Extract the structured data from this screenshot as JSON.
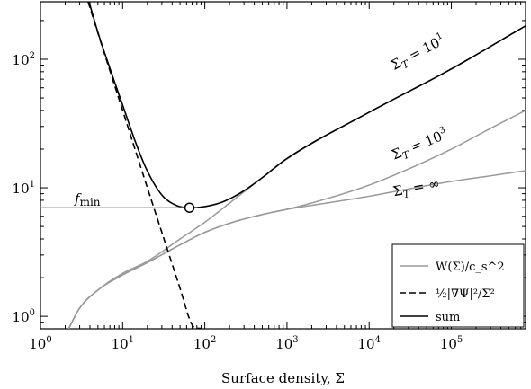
{
  "chart_data": {
    "type": "line",
    "xlabel": "Surface density, Σ",
    "ylabel": "",
    "xscale": "log",
    "yscale": "log",
    "xlim": [
      1,
      800000
    ],
    "ylim": [
      0.8,
      280
    ],
    "x_ticks": [
      {
        "value": 1,
        "base": "10",
        "exp": "0"
      },
      {
        "value": 10,
        "base": "10",
        "exp": "1"
      },
      {
        "value": 100,
        "base": "10",
        "exp": "2"
      },
      {
        "value": 1000,
        "base": "10",
        "exp": "3"
      },
      {
        "value": 10000,
        "base": "10",
        "exp": "4"
      },
      {
        "value": 100000,
        "base": "10",
        "exp": "5"
      }
    ],
    "y_ticks": [
      {
        "value": 1,
        "base": "10",
        "exp": "0"
      },
      {
        "value": 10,
        "base": "10",
        "exp": "1"
      },
      {
        "value": 100,
        "base": "10",
        "exp": "2"
      }
    ],
    "grid": false,
    "legend_position": "bottom-right",
    "legend": [
      {
        "label": "W(Σ)/c_s^2",
        "style": "solid",
        "color": "#999999"
      },
      {
        "label": "½|∇Ψ|²/Σ²",
        "style": "dashed",
        "color": "#000000"
      },
      {
        "label": "sum",
        "style": "solid",
        "color": "#000000"
      }
    ],
    "series": [
      {
        "name": "W(Σ)/c_s^2, Σ_T = 10^1",
        "style": "solid",
        "color": "#999999",
        "x": [
          2.2,
          3,
          5,
          10,
          20,
          50,
          100,
          200,
          500,
          1000,
          10000,
          100000,
          800000
        ],
        "y": [
          0.8,
          1.16,
          1.6,
          2.16,
          2.68,
          4.0,
          5.4,
          7.6,
          12.0,
          16.8,
          38.6,
          84.0,
          182.0
        ]
      },
      {
        "name": "W(Σ)/c_s^2, Σ_T = 10^3",
        "style": "solid",
        "color": "#999999",
        "x": [
          2.2,
          3,
          5,
          10,
          20,
          50,
          100,
          200,
          500,
          1000,
          3000,
          10000,
          30000,
          100000,
          300000,
          800000
        ],
        "y": [
          0.8,
          1.16,
          1.6,
          2.1,
          2.62,
          3.6,
          4.5,
          5.3,
          6.2,
          6.8,
          8.2,
          10.5,
          14.0,
          20.0,
          29.0,
          40.0
        ]
      },
      {
        "name": "W(Σ)/c_s^2, Σ_T = ∞",
        "style": "solid",
        "color": "#999999",
        "x": [
          2.2,
          3,
          5,
          10,
          20,
          50,
          100,
          200,
          500,
          1000,
          3000,
          10000,
          30000,
          100000,
          300000,
          800000
        ],
        "y": [
          0.8,
          1.16,
          1.6,
          2.1,
          2.62,
          3.6,
          4.5,
          5.3,
          6.2,
          6.8,
          7.6,
          8.6,
          9.8,
          11.2,
          12.4,
          13.6
        ]
      },
      {
        "name": "½|∇Ψ|²/Σ²",
        "style": "dashed",
        "color": "#000000",
        "x": [
          3.8,
          5,
          10,
          20,
          30,
          50,
          70,
          90
        ],
        "y": [
          280,
          160,
          40,
          10,
          4.5,
          1.65,
          0.86,
          0.8
        ]
      },
      {
        "name": "sum",
        "style": "solid",
        "color": "#000000",
        "x": [
          3.9,
          5,
          7,
          10,
          15,
          20,
          30,
          45,
          65,
          100,
          150,
          200,
          300,
          500,
          1000,
          10000,
          100000,
          800000
        ],
        "y": [
          280,
          162,
          85,
          44,
          21,
          13.5,
          8.8,
          7.3,
          7.0,
          7.15,
          7.6,
          8.2,
          9.5,
          12.0,
          16.9,
          38.7,
          84.1,
          182.0
        ]
      }
    ],
    "fmin": {
      "value": 7.0,
      "x": 65,
      "label": "f_min"
    },
    "annotations": [
      {
        "text_main": "Σ",
        "sub": "T",
        "rest": " = 10",
        "sup": "1",
        "x": 20000,
        "y": 82
      },
      {
        "text_main": "Σ",
        "sub": "T",
        "rest": " = 10",
        "sup": "3",
        "x": 20000,
        "y": 16.5
      },
      {
        "text_main": "Σ",
        "sub": "T",
        "rest": " = ∞",
        "sup": "",
        "x": 20000,
        "y": 8.6
      }
    ]
  }
}
